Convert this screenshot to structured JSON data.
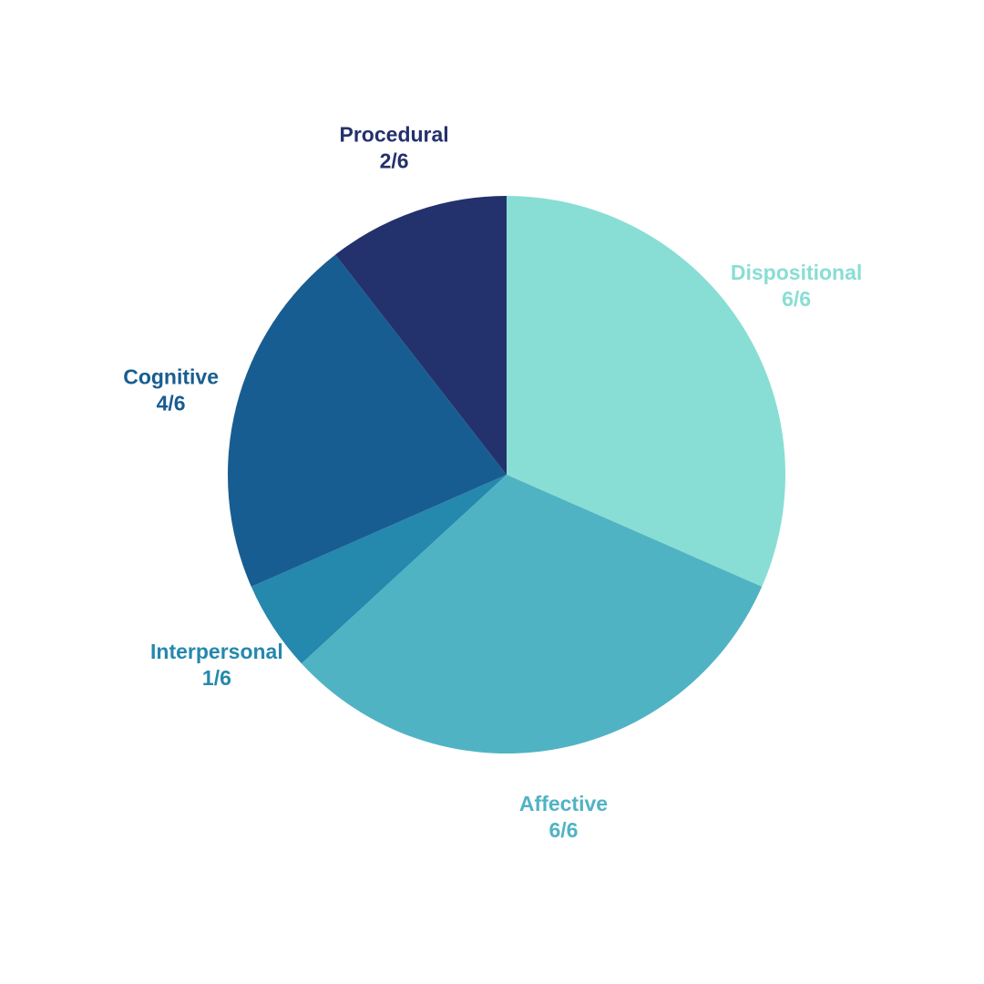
{
  "chart_data": {
    "type": "pie",
    "title": "",
    "slices": [
      {
        "label": "Dispositional",
        "value_text": "6/6",
        "value": 6,
        "color": "#88DED4"
      },
      {
        "label": "Affective",
        "value_text": "6/6",
        "value": 6,
        "color": "#50B3C3"
      },
      {
        "label": "Interpersonal",
        "value_text": "1/6",
        "value": 1,
        "color": "#2588AD"
      },
      {
        "label": "Cognitive",
        "value_text": "4/6",
        "value": 4,
        "color": "#185D91"
      },
      {
        "label": "Procedural",
        "value_text": "2/6",
        "value": 2,
        "color": "#23316C"
      }
    ]
  }
}
